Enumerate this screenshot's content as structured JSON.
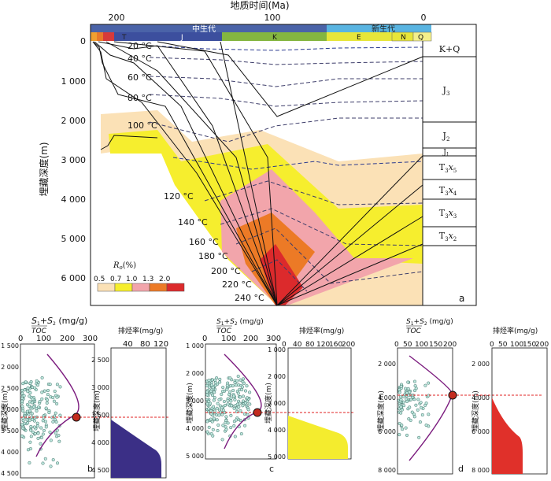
{
  "main": {
    "title": "地质时间(Ma)",
    "age_ticks": [
      "200",
      "100",
      "0"
    ],
    "ylabel": "埋藏深度(m)",
    "depth_ticks": [
      "0",
      "1 000",
      "2 000",
      "3 000",
      "4 000",
      "5 000",
      "6 000"
    ],
    "era_bar": [
      {
        "label": "中生代",
        "color": "#4a63a8"
      },
      {
        "label": "新生代",
        "color": "#59b4e1"
      }
    ],
    "period_bar": [
      {
        "label": "T",
        "color": "#7a3a8a"
      },
      {
        "label": "J",
        "color": "#3c4f9e"
      },
      {
        "label": "K",
        "color": "#84b640"
      },
      {
        "label": "E",
        "color": "#e7e63a"
      },
      {
        "label": "N",
        "color": "#e7e63a"
      },
      {
        "label": "Q",
        "color": "#f3ef8a"
      }
    ],
    "isotherms": [
      "20 °C",
      "40 °C",
      "60 °C",
      "80 °C",
      "100 °C",
      "120 °C",
      "140 °C",
      "160 °C",
      "180 °C",
      "200 °C",
      "220 °C",
      "240 °C"
    ],
    "strata": [
      {
        "label": "K+Q"
      },
      {
        "label": "J",
        "sub": "3"
      },
      {
        "label": "J",
        "sub": "2"
      },
      {
        "label": "J",
        "sub": "1"
      },
      {
        "label": "T",
        "sub": "3",
        "tail": "x",
        "tail_sub": "5"
      },
      {
        "label": "T",
        "sub": "3",
        "tail": "x",
        "tail_sub": "4"
      },
      {
        "label": "T",
        "sub": "3",
        "tail": "x",
        "tail_sub": "3"
      },
      {
        "label": "T",
        "sub": "3",
        "tail": "x",
        "tail_sub": "2"
      }
    ],
    "legend": {
      "title": "R",
      "title_sub": "o",
      "title_tail": "(%)",
      "labels": [
        "0.5",
        "0.7",
        "1.0",
        "1.3",
        "2.0"
      ],
      "colors": [
        "#fbe1b6",
        "#f6ee2e",
        "#f2a5ab",
        "#ec7a26",
        "#dc2a2c"
      ]
    },
    "panel_label": "a"
  },
  "subplots": [
    {
      "panel_label": "b",
      "ratio_label": "S",
      "ratio_unit": "(mg/g)",
      "ratio_denom": "TOC",
      "ratio_ticks": [
        "0",
        "100",
        "200",
        "300"
      ],
      "depth_label": "埋藏深度(m)",
      "depth_ticks": [
        "1 500",
        "2 000",
        "2 500",
        "3 000",
        "3 500",
        "4 000",
        "4 500"
      ],
      "rate_label": "排烃率(mg/g)",
      "rate_ticks": [
        "40",
        "80",
        "120"
      ],
      "rate_depth_ticks": [
        "2 500",
        "3 000",
        "3 500",
        "4 000",
        "4 500"
      ],
      "fill_color": "#3b2f86"
    },
    {
      "panel_label": "c",
      "ratio_label": "S",
      "ratio_unit": "(mg/g)",
      "ratio_denom": "TOC",
      "ratio_ticks": [
        "0",
        "100",
        "200",
        "300"
      ],
      "depth_label": "埋藏深度(m)",
      "depth_ticks": [
        "1 000",
        "2 000",
        "3 000",
        "4 000",
        "5 000"
      ],
      "rate_label": "排烃率(mg/g)",
      "rate_ticks": [
        "0",
        "40",
        "80",
        "120",
        "160",
        "200"
      ],
      "rate_depth_ticks": [
        "1 000",
        "2 000",
        "3 000",
        "4 000",
        "5 000"
      ],
      "fill_color": "#f4ec2e"
    },
    {
      "panel_label": "d",
      "ratio_label": "S",
      "ratio_unit": "(mg/g)",
      "ratio_denom": "TOC",
      "ratio_ticks": [
        "0",
        "50",
        "100",
        "150",
        "200"
      ],
      "depth_label": "埋藏深度(m)",
      "depth_ticks": [
        "2 000",
        "4 000",
        "6 000",
        "8 000"
      ],
      "rate_label": "排烃率(mg/g)",
      "rate_ticks": [
        "0",
        "50",
        "100",
        "150",
        "200"
      ],
      "rate_depth_ticks": [
        "2 000",
        "4 000",
        "6 000",
        "8 000"
      ],
      "fill_color": "#e0302a"
    }
  ]
}
